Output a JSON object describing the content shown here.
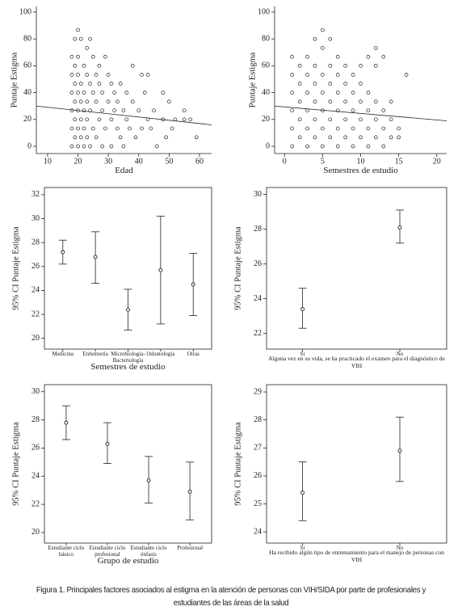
{
  "caption": "Figura 1. Principales factores asociados al estigma en la atención de personas con VIH/SIDA por parte de profesionales y estudiantes de las áreas de la salud",
  "chart_data": [
    {
      "type": "scatter",
      "xlabel": "Edad",
      "ylabel": "Puntaje Estigma",
      "frame": false,
      "xlim": [
        6.3,
        64
      ],
      "ylim": [
        -5.4,
        104.2
      ],
      "xticks": [
        10,
        20,
        30,
        40,
        50,
        60
      ],
      "yticks": [
        0,
        20,
        40,
        60,
        80,
        100
      ],
      "x": [
        18,
        18,
        18,
        18,
        18,
        18,
        19,
        19,
        19,
        19,
        19,
        19,
        20,
        20,
        20,
        20,
        20,
        20,
        20,
        21,
        21,
        21,
        21,
        21,
        22,
        22,
        22,
        22,
        22,
        23,
        23,
        23,
        23,
        23,
        24,
        24,
        24,
        24,
        25,
        25,
        25,
        26,
        26,
        26,
        27,
        27,
        27,
        28,
        28,
        28,
        29,
        29,
        30,
        30,
        31,
        31,
        31,
        32,
        32,
        33,
        33,
        34,
        34,
        35,
        35,
        36,
        36,
        37,
        38,
        38,
        39,
        40,
        41,
        41,
        42,
        43,
        43,
        44,
        45,
        46,
        48,
        48,
        49,
        50,
        51,
        52,
        55,
        55,
        57,
        59
      ],
      "values": [
        0,
        13.3,
        26.7,
        40,
        53.3,
        66.7,
        6.7,
        20,
        33.3,
        46.7,
        60,
        80,
        86.7,
        0,
        13.3,
        26.7,
        40,
        53.3,
        66.7,
        80,
        6.7,
        20,
        33.3,
        46.7,
        0,
        13.3,
        26.7,
        40,
        60,
        73.3,
        6.7,
        20,
        33.3,
        53.3,
        80,
        0,
        26.7,
        46.7,
        13.3,
        40,
        66.7,
        6.7,
        33.3,
        53.3,
        20,
        46.7,
        60,
        0,
        26.7,
        40,
        66.7,
        13.3,
        33.3,
        53.3,
        0,
        20,
        46.7,
        26.7,
        40,
        13.3,
        33.3,
        6.7,
        46.7,
        0,
        26.7,
        20,
        40,
        13.3,
        60,
        33.3,
        6.7,
        26.7,
        53.3,
        13.3,
        40,
        20,
        53.3,
        13.3,
        26.7,
        0,
        40,
        20,
        6.7,
        33.3,
        13.3,
        20,
        20,
        26.7,
        20,
        6.7
      ],
      "trend": {
        "x": [
          6.3,
          64
        ],
        "y": [
          30,
          16
        ]
      }
    },
    {
      "type": "scatter",
      "xlabel": "Semestres de estudio",
      "ylabel": "Puntaje Estigma",
      "frame": false,
      "xlim": [
        -1.3,
        21.3
      ],
      "ylim": [
        -5.4,
        104.2
      ],
      "xticks": [
        0,
        5,
        10,
        15,
        20
      ],
      "yticks": [
        0,
        20,
        40,
        60,
        80,
        100
      ],
      "x": [
        1,
        1,
        1,
        1,
        1,
        1,
        2,
        2,
        2,
        2,
        2,
        3,
        3,
        3,
        3,
        3,
        3,
        4,
        4,
        4,
        4,
        4,
        4,
        5,
        5,
        5,
        5,
        5,
        5,
        5,
        6,
        6,
        6,
        6,
        6,
        6,
        7,
        7,
        7,
        7,
        7,
        7,
        8,
        8,
        8,
        8,
        8,
        9,
        9,
        9,
        9,
        9,
        10,
        10,
        10,
        10,
        10,
        11,
        11,
        11,
        11,
        11,
        12,
        12,
        12,
        12,
        12,
        13,
        13,
        13,
        13,
        14,
        14,
        14,
        15,
        15,
        16
      ],
      "values": [
        0,
        13.3,
        26.7,
        40,
        53.3,
        66.7,
        6.7,
        20,
        33.3,
        46.7,
        60,
        0,
        13.3,
        26.7,
        40,
        53.3,
        66.7,
        6.7,
        20,
        33.3,
        46.7,
        60,
        80,
        0,
        13.3,
        26.7,
        40,
        53.3,
        73.3,
        86.7,
        6.7,
        20,
        33.3,
        46.7,
        60,
        80,
        0,
        13.3,
        26.7,
        40,
        53.3,
        66.7,
        6.7,
        20,
        33.3,
        46.7,
        60,
        0,
        13.3,
        26.7,
        40,
        53.3,
        6.7,
        20,
        33.3,
        46.7,
        60,
        0,
        13.3,
        26.7,
        40,
        66.7,
        6.7,
        20,
        33.3,
        73.3,
        60,
        0,
        13.3,
        26.7,
        66.7,
        6.7,
        20,
        33.3,
        13.3,
        6.7,
        53.3
      ],
      "trend": {
        "x": [
          -1.3,
          21.3
        ],
        "y": [
          30,
          19
        ]
      }
    },
    {
      "type": "errorbar",
      "xlabel": "Semestres de estudio",
      "ylabel": "95% CI Puntaje Estigma",
      "frame": true,
      "ylim": [
        19.1,
        32.6
      ],
      "yticks": [
        20,
        22,
        24,
        26,
        28,
        30,
        32
      ],
      "categories": [
        "Medicina",
        "Enfermería",
        "Microbiología-Bacteriología",
        "Odontología",
        "Otras"
      ],
      "values": [
        27.2,
        26.8,
        22.4,
        25.7,
        24.5
      ],
      "lower": [
        26.2,
        24.6,
        20.7,
        21.2,
        21.9
      ],
      "upper": [
        28.2,
        28.9,
        24.1,
        30.2,
        27.1
      ]
    },
    {
      "type": "errorbar",
      "xlabel": "Alguna vez en su vida, se ha practicado el examen para el diagnóstico de VIH",
      "ylabel": "95% CI Puntaje Estigma",
      "frame": true,
      "ylim": [
        21.1,
        30.4
      ],
      "yticks": [
        22,
        24,
        26,
        28,
        30
      ],
      "categories": [
        "Si",
        "No"
      ],
      "values": [
        23.4,
        28.1
      ],
      "lower": [
        22.3,
        27.2
      ],
      "upper": [
        24.6,
        29.1
      ]
    },
    {
      "type": "errorbar",
      "xlabel": "Grupo de estudio",
      "ylabel": "95% CI Puntaje Estigma",
      "frame": true,
      "ylim": [
        19.25,
        30.5
      ],
      "yticks": [
        20,
        22,
        24,
        26,
        28,
        30
      ],
      "categories": [
        "Estudiante ciclo básico",
        "Estudiante ciclo profesional",
        "Estudiante ciclo énfasis",
        "Profesional"
      ],
      "values": [
        27.8,
        26.3,
        23.7,
        22.9
      ],
      "lower": [
        26.6,
        24.9,
        22.1,
        20.9
      ],
      "upper": [
        29.0,
        27.8,
        25.4,
        25.0
      ]
    },
    {
      "type": "errorbar",
      "xlabel": "Ha recibido algún tipo de entrenamiento para el manejo de personas con VIH",
      "ylabel": "95% CI Puntaje Estigma",
      "frame": true,
      "ylim": [
        23.6,
        29.26
      ],
      "yticks": [
        24,
        25,
        26,
        27,
        28,
        29
      ],
      "categories": [
        "Si",
        "No"
      ],
      "values": [
        25.4,
        26.9
      ],
      "lower": [
        24.4,
        25.8
      ],
      "upper": [
        26.5,
        28.1
      ]
    }
  ]
}
